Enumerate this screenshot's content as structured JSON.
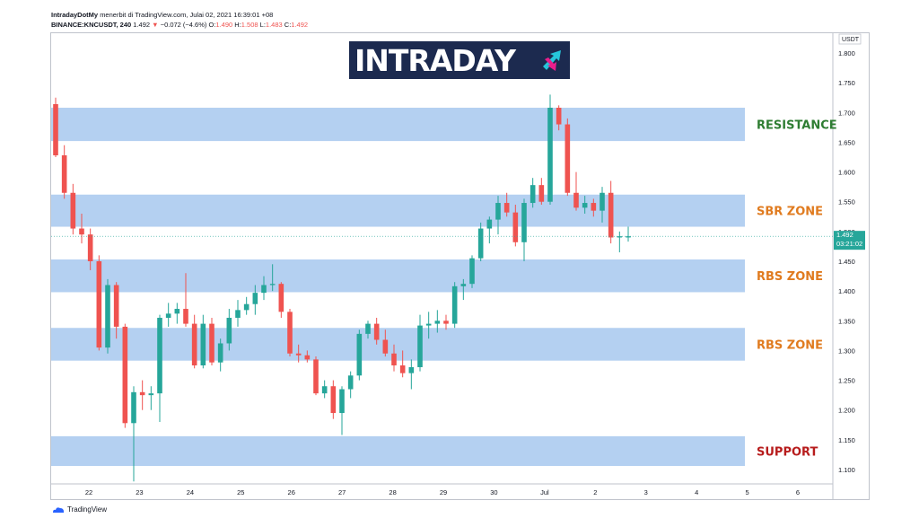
{
  "header": {
    "line1_author": "IntradayDotMy",
    "line1_rest": "menerbit di TradingView.com, Julai 02, 2021 16:39:01 +08",
    "symbol": "BINANCE:KNCUSDT, 240",
    "last": "1.492",
    "change": "−0.072 (−4.6%)",
    "o_label": "O:",
    "o": "1.490",
    "h_label": "H:",
    "h": "1.508",
    "l_label": "L:",
    "l": "1.483",
    "c_label": "C:",
    "c": "1.492"
  },
  "logo": {
    "part1": "INTRA",
    "part2": "DAY"
  },
  "currency": "USDT",
  "price_tag": {
    "price": "1.492",
    "countdown": "03:21:02"
  },
  "footer": {
    "brand": "TradingView"
  },
  "colors": {
    "up": "#26a69a",
    "down": "#ef5350",
    "zone": "#a7c8ee",
    "resistance": "#2e7d32",
    "sbr": "#e07b1f",
    "rbs": "#e07b1f",
    "support": "#b71c1c",
    "logo_bg": "#1c2a4f"
  },
  "zones": [
    {
      "label": "RESISTANCE",
      "low": 1.652,
      "high": 1.708,
      "color_key": "resistance"
    },
    {
      "label": "SBR ZONE",
      "low": 1.508,
      "high": 1.562,
      "color_key": "sbr"
    },
    {
      "label": "RBS ZONE",
      "low": 1.398,
      "high": 1.453,
      "color_key": "rbs"
    },
    {
      "label": "RBS ZONE",
      "low": 1.283,
      "high": 1.338,
      "color_key": "rbs"
    },
    {
      "label": "SUPPORT",
      "low": 1.106,
      "high": 1.156,
      "color_key": "support"
    }
  ],
  "chart_data": {
    "type": "candlestick",
    "symbol": "BINANCE:KNCUSDT",
    "timeframe": "240",
    "ylim": [
      1.06,
      1.82
    ],
    "y_ticks": [
      "1.100",
      "1.150",
      "1.200",
      "1.250",
      "1.300",
      "1.350",
      "1.400",
      "1.450",
      "1.500",
      "1.550",
      "1.600",
      "1.650",
      "1.700",
      "1.750",
      "1.800"
    ],
    "x_ticks": [
      "22",
      "23",
      "24",
      "25",
      "26",
      "27",
      "28",
      "29",
      "30",
      "Jul",
      "2",
      "3",
      "4",
      "5",
      "6"
    ],
    "candles": [
      {
        "o": 1.714,
        "h": 1.725,
        "l": 1.625,
        "c": 1.628
      },
      {
        "o": 1.628,
        "h": 1.645,
        "l": 1.555,
        "c": 1.565
      },
      {
        "o": 1.565,
        "h": 1.58,
        "l": 1.495,
        "c": 1.505
      },
      {
        "o": 1.505,
        "h": 1.53,
        "l": 1.48,
        "c": 1.495
      },
      {
        "o": 1.495,
        "h": 1.505,
        "l": 1.435,
        "c": 1.45
      },
      {
        "o": 1.45,
        "h": 1.46,
        "l": 1.3,
        "c": 1.305
      },
      {
        "o": 1.305,
        "h": 1.42,
        "l": 1.295,
        "c": 1.41
      },
      {
        "o": 1.41,
        "h": 1.415,
        "l": 1.32,
        "c": 1.34
      },
      {
        "o": 1.34,
        "h": 1.345,
        "l": 1.17,
        "c": 1.178
      },
      {
        "o": 1.178,
        "h": 1.24,
        "l": 1.08,
        "c": 1.23
      },
      {
        "o": 1.23,
        "h": 1.25,
        "l": 1.2,
        "c": 1.225
      },
      {
        "o": 1.225,
        "h": 1.24,
        "l": 1.2,
        "c": 1.228
      },
      {
        "o": 1.228,
        "h": 1.36,
        "l": 1.18,
        "c": 1.355
      },
      {
        "o": 1.355,
        "h": 1.38,
        "l": 1.34,
        "c": 1.362
      },
      {
        "o": 1.362,
        "h": 1.38,
        "l": 1.345,
        "c": 1.37
      },
      {
        "o": 1.37,
        "h": 1.43,
        "l": 1.34,
        "c": 1.345
      },
      {
        "o": 1.345,
        "h": 1.36,
        "l": 1.27,
        "c": 1.275
      },
      {
        "o": 1.275,
        "h": 1.36,
        "l": 1.27,
        "c": 1.345
      },
      {
        "o": 1.345,
        "h": 1.355,
        "l": 1.275,
        "c": 1.28
      },
      {
        "o": 1.28,
        "h": 1.32,
        "l": 1.265,
        "c": 1.312
      },
      {
        "o": 1.312,
        "h": 1.37,
        "l": 1.3,
        "c": 1.355
      },
      {
        "o": 1.355,
        "h": 1.385,
        "l": 1.34,
        "c": 1.368
      },
      {
        "o": 1.368,
        "h": 1.39,
        "l": 1.36,
        "c": 1.378
      },
      {
        "o": 1.378,
        "h": 1.41,
        "l": 1.36,
        "c": 1.397
      },
      {
        "o": 1.397,
        "h": 1.425,
        "l": 1.385,
        "c": 1.41
      },
      {
        "o": 1.41,
        "h": 1.445,
        "l": 1.4,
        "c": 1.412
      },
      {
        "o": 1.412,
        "h": 1.415,
        "l": 1.355,
        "c": 1.365
      },
      {
        "o": 1.365,
        "h": 1.37,
        "l": 1.29,
        "c": 1.295
      },
      {
        "o": 1.295,
        "h": 1.31,
        "l": 1.28,
        "c": 1.292
      },
      {
        "o": 1.292,
        "h": 1.3,
        "l": 1.28,
        "c": 1.285
      },
      {
        "o": 1.285,
        "h": 1.29,
        "l": 1.225,
        "c": 1.228
      },
      {
        "o": 1.228,
        "h": 1.25,
        "l": 1.22,
        "c": 1.24
      },
      {
        "o": 1.24,
        "h": 1.25,
        "l": 1.185,
        "c": 1.195
      },
      {
        "o": 1.195,
        "h": 1.24,
        "l": 1.158,
        "c": 1.235
      },
      {
        "o": 1.235,
        "h": 1.265,
        "l": 1.22,
        "c": 1.258
      },
      {
        "o": 1.258,
        "h": 1.335,
        "l": 1.25,
        "c": 1.328
      },
      {
        "o": 1.328,
        "h": 1.35,
        "l": 1.32,
        "c": 1.345
      },
      {
        "o": 1.345,
        "h": 1.355,
        "l": 1.31,
        "c": 1.318
      },
      {
        "o": 1.318,
        "h": 1.335,
        "l": 1.29,
        "c": 1.295
      },
      {
        "o": 1.295,
        "h": 1.31,
        "l": 1.265,
        "c": 1.275
      },
      {
        "o": 1.275,
        "h": 1.3,
        "l": 1.255,
        "c": 1.262
      },
      {
        "o": 1.262,
        "h": 1.285,
        "l": 1.235,
        "c": 1.272
      },
      {
        "o": 1.272,
        "h": 1.36,
        "l": 1.265,
        "c": 1.342
      },
      {
        "o": 1.342,
        "h": 1.365,
        "l": 1.32,
        "c": 1.345
      },
      {
        "o": 1.345,
        "h": 1.368,
        "l": 1.33,
        "c": 1.35
      },
      {
        "o": 1.35,
        "h": 1.36,
        "l": 1.335,
        "c": 1.345
      },
      {
        "o": 1.345,
        "h": 1.415,
        "l": 1.338,
        "c": 1.408
      },
      {
        "o": 1.408,
        "h": 1.42,
        "l": 1.385,
        "c": 1.412
      },
      {
        "o": 1.412,
        "h": 1.46,
        "l": 1.405,
        "c": 1.455
      },
      {
        "o": 1.455,
        "h": 1.515,
        "l": 1.45,
        "c": 1.505
      },
      {
        "o": 1.505,
        "h": 1.525,
        "l": 1.48,
        "c": 1.52
      },
      {
        "o": 1.52,
        "h": 1.56,
        "l": 1.495,
        "c": 1.548
      },
      {
        "o": 1.548,
        "h": 1.565,
        "l": 1.525,
        "c": 1.532
      },
      {
        "o": 1.532,
        "h": 1.545,
        "l": 1.475,
        "c": 1.482
      },
      {
        "o": 1.482,
        "h": 1.555,
        "l": 1.45,
        "c": 1.548
      },
      {
        "o": 1.548,
        "h": 1.59,
        "l": 1.54,
        "c": 1.578
      },
      {
        "o": 1.578,
        "h": 1.59,
        "l": 1.545,
        "c": 1.55
      },
      {
        "o": 1.55,
        "h": 1.73,
        "l": 1.545,
        "c": 1.708
      },
      {
        "o": 1.708,
        "h": 1.712,
        "l": 1.67,
        "c": 1.68
      },
      {
        "o": 1.68,
        "h": 1.69,
        "l": 1.56,
        "c": 1.565
      },
      {
        "o": 1.565,
        "h": 1.6,
        "l": 1.535,
        "c": 1.54
      },
      {
        "o": 1.54,
        "h": 1.56,
        "l": 1.53,
        "c": 1.548
      },
      {
        "o": 1.548,
        "h": 1.555,
        "l": 1.525,
        "c": 1.535
      },
      {
        "o": 1.535,
        "h": 1.575,
        "l": 1.515,
        "c": 1.565
      },
      {
        "o": 1.565,
        "h": 1.585,
        "l": 1.48,
        "c": 1.49
      },
      {
        "o": 1.49,
        "h": 1.5,
        "l": 1.465,
        "c": 1.492
      },
      {
        "o": 1.49,
        "h": 1.508,
        "l": 1.483,
        "c": 1.492
      }
    ],
    "last_price": 1.492
  }
}
